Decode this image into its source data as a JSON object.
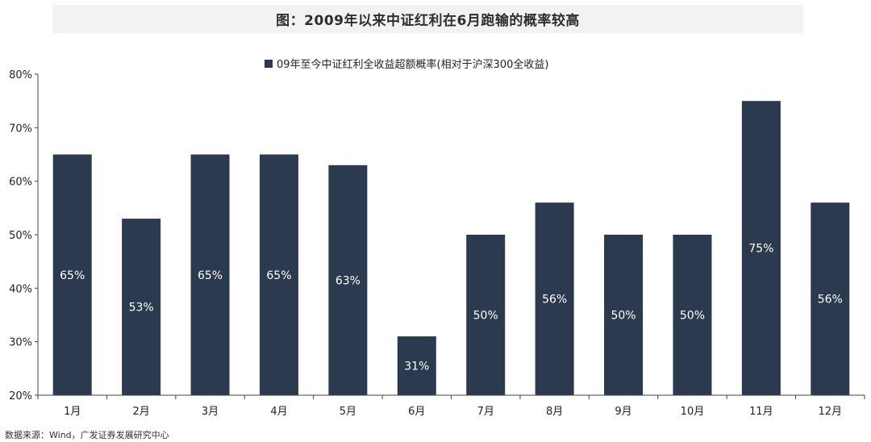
{
  "title": "图：2009年以来中证红利在6月跑输的概率较高",
  "source": "数据来源：Wind，广发证券发展研究中心",
  "chart_data": {
    "type": "bar",
    "categories": [
      "1月",
      "2月",
      "3月",
      "4月",
      "5月",
      "6月",
      "7月",
      "8月",
      "9月",
      "10月",
      "11月",
      "12月"
    ],
    "series": [
      {
        "name": "09年至今中证红利全收益超额概率(相对于沪深300全收益)",
        "values": [
          65,
          53,
          65,
          65,
          63,
          31,
          50,
          56,
          50,
          50,
          75,
          56
        ],
        "labels": [
          "65%",
          "53%",
          "65%",
          "65%",
          "63%",
          "31%",
          "50%",
          "56%",
          "50%",
          "50%",
          "75%",
          "56%"
        ],
        "color": "#2c3a4f"
      }
    ],
    "ylim": [
      20,
      80
    ],
    "yticks": [
      20,
      30,
      40,
      50,
      60,
      70,
      80
    ],
    "ytick_labels": [
      "20%",
      "30%",
      "40%",
      "50%",
      "60%",
      "70%",
      "80%"
    ],
    "legend_position": "top-center",
    "grid": false
  }
}
